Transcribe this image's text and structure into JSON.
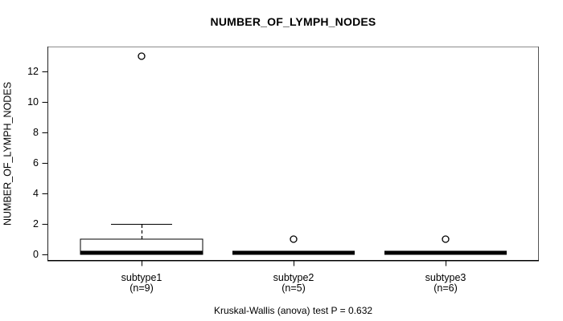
{
  "chart_data": {
    "type": "boxplot",
    "title": "NUMBER_OF_LYMPH_NODES",
    "ylabel": "NUMBER_OF_LYMPH_NODES",
    "xlabel": "",
    "caption": "Kruskal-Wallis (anova) test P = 0.632",
    "y_ticks": [
      0,
      2,
      4,
      6,
      8,
      10,
      12
    ],
    "ylim": [
      -0.5,
      13.7
    ],
    "grid": false,
    "legend": null,
    "groups": [
      {
        "label": "subtype1",
        "n_label": "(n=9)",
        "n": 9,
        "q1": 0,
        "median": 0,
        "q3": 1,
        "whisker_low": 0,
        "whisker_high": 2,
        "outliers": [
          13
        ]
      },
      {
        "label": "subtype2",
        "n_label": "(n=5)",
        "n": 5,
        "q1": 0,
        "median": 0,
        "q3": 0,
        "whisker_low": 0,
        "whisker_high": 0,
        "outliers": [
          1
        ]
      },
      {
        "label": "subtype3",
        "n_label": "(n=6)",
        "n": 6,
        "q1": 0,
        "median": 0,
        "q3": 0,
        "whisker_low": 0,
        "whisker_high": 0,
        "outliers": [
          1
        ]
      }
    ],
    "colors": {
      "background": "#ffffff",
      "box_fill": "#ffffff",
      "line": "#000000"
    }
  }
}
